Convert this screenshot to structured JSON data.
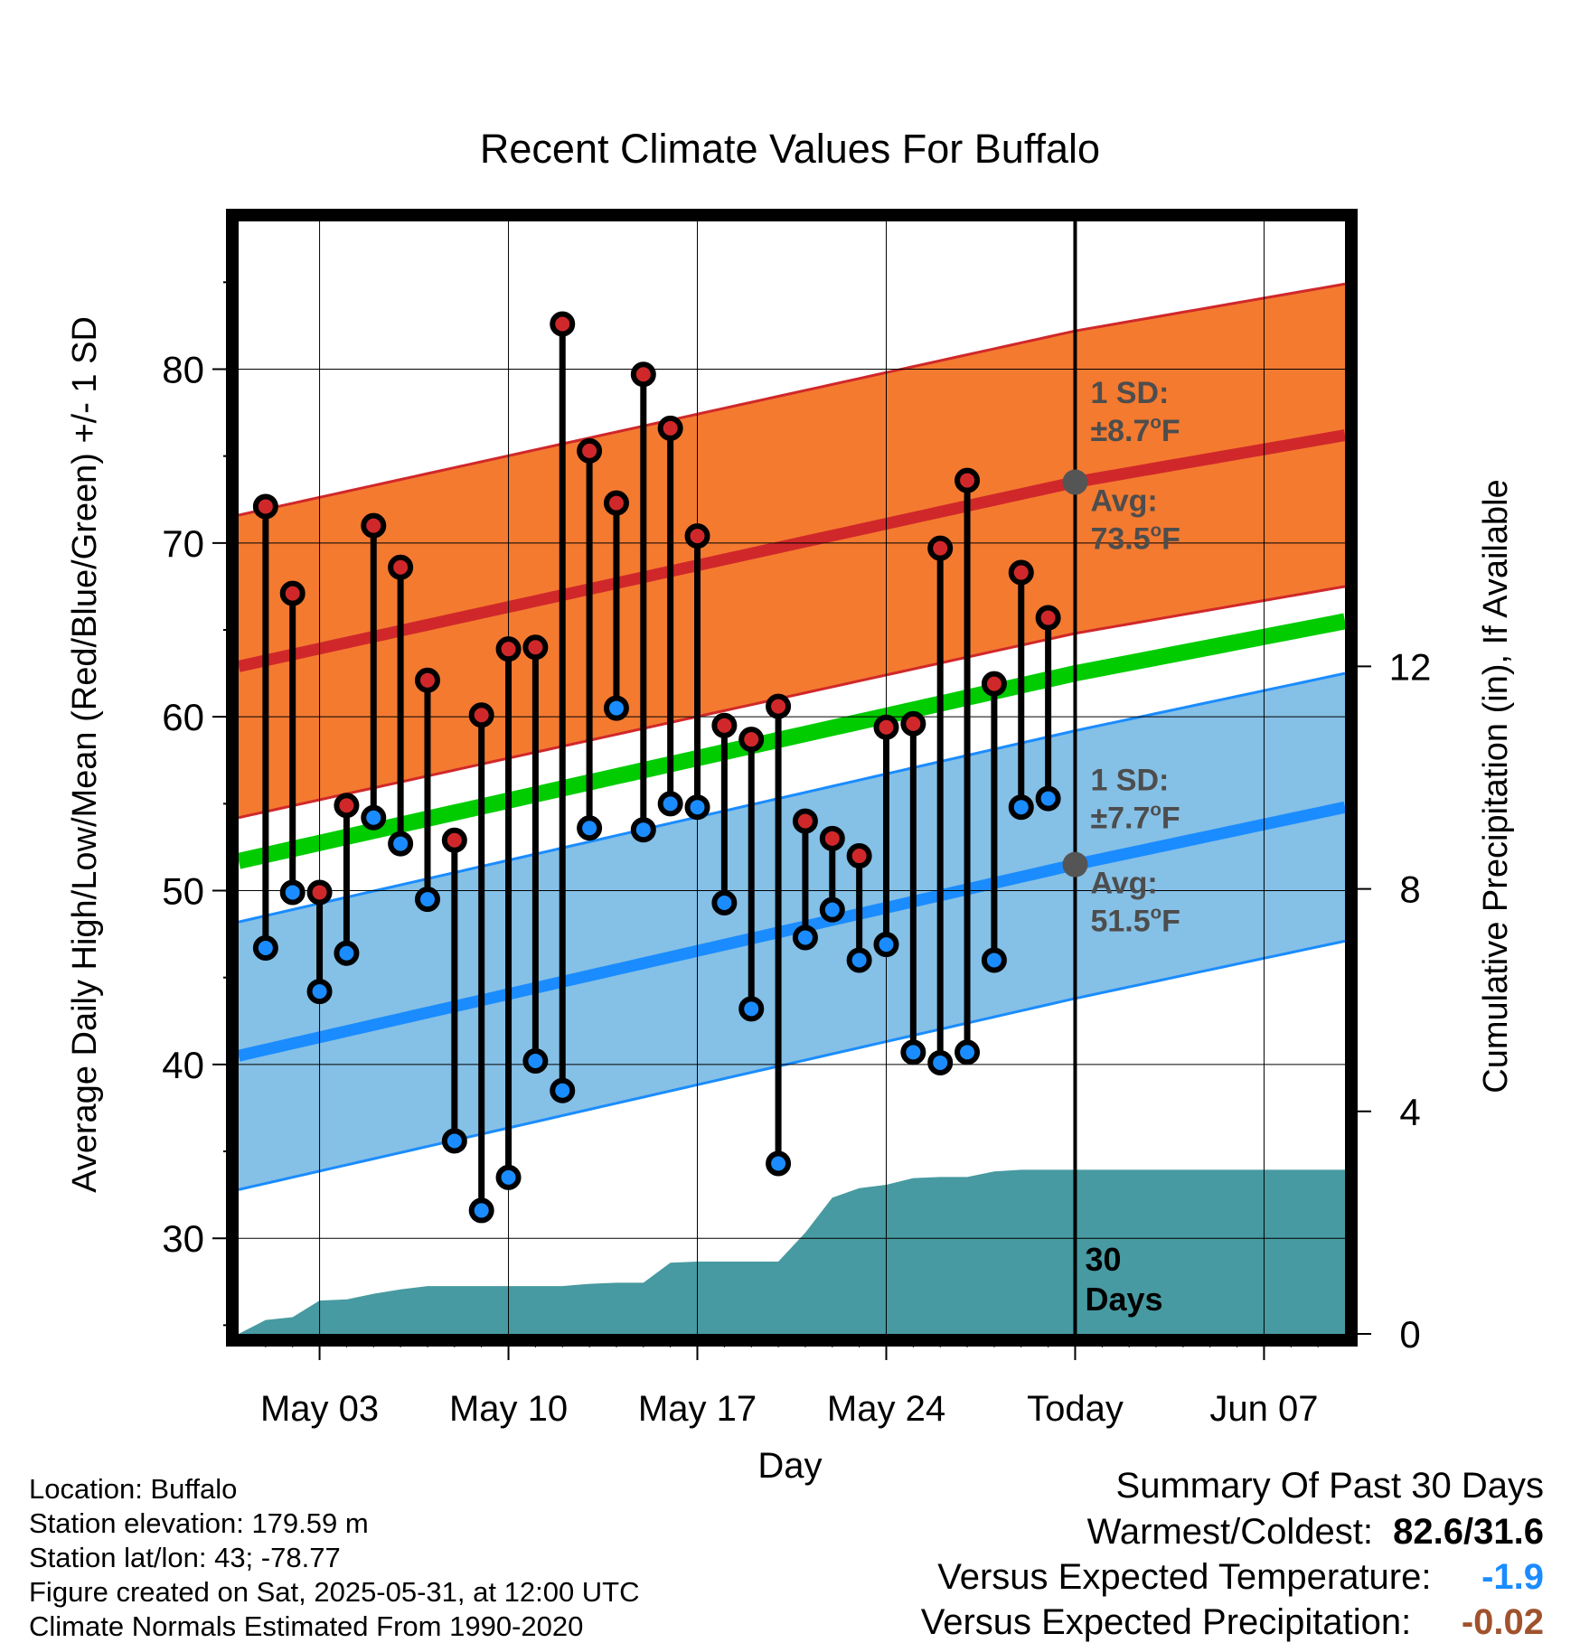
{
  "chart_data": {
    "type": "line",
    "title": "Recent Climate Values For Buffalo",
    "xlabel": "Day",
    "ylabel": "Average Daily High/Low/Mean (Red/Blue/Green) +/- 1 SD",
    "y2label": "Cumulative Precipitation (in), If Available",
    "x_axis": {
      "type": "date",
      "start": "2025-04-30",
      "end": "2025-06-10",
      "today": "2025-05-31",
      "tick_dates": [
        "2025-05-03",
        "2025-05-10",
        "2025-05-17",
        "2025-05-24",
        "2025-05-31",
        "2025-06-07"
      ],
      "tick_labels": [
        "May 03",
        "May 10",
        "May 17",
        "May 24",
        "Today",
        "Jun 07"
      ]
    },
    "ylim": [
      24.5,
      88.5
    ],
    "yticks": [
      30,
      40,
      50,
      60,
      70,
      80
    ],
    "y2lim": [
      0,
      20
    ],
    "y2ticks": [
      0,
      4,
      8,
      12
    ],
    "grid": true,
    "observed": {
      "dates": [
        "2025-05-01",
        "2025-05-02",
        "2025-05-03",
        "2025-05-04",
        "2025-05-05",
        "2025-05-06",
        "2025-05-07",
        "2025-05-08",
        "2025-05-09",
        "2025-05-10",
        "2025-05-11",
        "2025-05-12",
        "2025-05-13",
        "2025-05-14",
        "2025-05-15",
        "2025-05-16",
        "2025-05-17",
        "2025-05-18",
        "2025-05-19",
        "2025-05-20",
        "2025-05-21",
        "2025-05-22",
        "2025-05-23",
        "2025-05-24",
        "2025-05-25",
        "2025-05-26",
        "2025-05-27",
        "2025-05-28",
        "2025-05-29",
        "2025-05-30"
      ],
      "high": [
        72.1,
        67.1,
        49.9,
        54.9,
        71.0,
        68.6,
        62.1,
        52.9,
        60.1,
        63.9,
        64.0,
        82.6,
        75.3,
        72.3,
        79.7,
        76.6,
        70.4,
        59.5,
        58.7,
        60.6,
        54.0,
        53.0,
        52.0,
        59.4,
        59.6,
        69.7,
        73.6,
        61.9,
        68.3,
        65.7
      ],
      "low": [
        46.7,
        49.9,
        44.2,
        46.4,
        54.2,
        52.7,
        49.5,
        35.6,
        31.6,
        33.5,
        40.2,
        38.5,
        53.6,
        60.5,
        53.5,
        55.0,
        54.8,
        49.3,
        43.2,
        34.3,
        47.3,
        48.9,
        46.0,
        46.9,
        40.7,
        40.1,
        40.7,
        46.0,
        54.8,
        55.3
      ]
    },
    "precip_cumulative": {
      "dates": [
        "2025-04-30",
        "2025-05-01",
        "2025-05-02",
        "2025-05-03",
        "2025-05-04",
        "2025-05-05",
        "2025-05-06",
        "2025-05-07",
        "2025-05-08",
        "2025-05-09",
        "2025-05-10",
        "2025-05-11",
        "2025-05-12",
        "2025-05-13",
        "2025-05-14",
        "2025-05-15",
        "2025-05-16",
        "2025-05-17",
        "2025-05-18",
        "2025-05-19",
        "2025-05-20",
        "2025-05-21",
        "2025-05-22",
        "2025-05-23",
        "2025-05-24",
        "2025-05-25",
        "2025-05-26",
        "2025-05-27",
        "2025-05-28",
        "2025-05-29",
        "2025-05-30",
        "2025-05-31",
        "2025-06-10"
      ],
      "values": [
        0.0,
        0.25,
        0.3,
        0.6,
        0.62,
        0.72,
        0.8,
        0.86,
        0.86,
        0.86,
        0.86,
        0.86,
        0.86,
        0.9,
        0.92,
        0.92,
        1.28,
        1.3,
        1.3,
        1.3,
        1.3,
        1.82,
        2.45,
        2.62,
        2.68,
        2.8,
        2.82,
        2.82,
        2.92,
        2.95,
        2.95,
        2.95,
        2.95
      ]
    },
    "normal_high": {
      "dates": [
        "2025-04-30",
        "2025-05-31",
        "2025-06-10"
      ],
      "mean": [
        62.9,
        73.5,
        76.2
      ],
      "sd": 8.7,
      "band_color": "#f47a30",
      "line_color": "#d0282a"
    },
    "normal_low": {
      "dates": [
        "2025-04-30",
        "2025-05-31",
        "2025-06-10"
      ],
      "mean": [
        40.5,
        51.5,
        54.8
      ],
      "sd": 7.7,
      "band_color": "#85c0e6",
      "line_color": "#1a8cff"
    },
    "normal_mean": {
      "dates": [
        "2025-04-30",
        "2025-05-31",
        "2025-06-10"
      ],
      "values": [
        51.7,
        62.5,
        65.5
      ],
      "line_color": "#00cc00"
    },
    "precip_color": "#479aa1",
    "high_marker_color": "#d0282a",
    "low_marker_color": "#1a8cff",
    "annotations": {
      "high_sd_label": "1 SD:",
      "high_sd_value": "±8.7",
      "high_avg_label": "Avg:",
      "high_avg_value": "73.5",
      "low_sd_label": "1 SD:",
      "low_sd_value": "±7.7",
      "low_avg_label": "Avg:",
      "low_avg_value": "51.5",
      "degree_unit": "o",
      "unit_letter": "F",
      "days_number": "30",
      "days_word": "Days"
    }
  },
  "metadata_text": {
    "location": "Location: Buffalo",
    "elevation": "Station elevation: 179.59 m",
    "latlon": "Station lat/lon: 43; -78.77",
    "created": "Figure created on Sat, 2025-05-31, at 12:00 UTC",
    "normals": "Climate Normals Estimated From 1990-2020"
  },
  "summary": {
    "heading": "Summary Of Past 30 Days",
    "warm_cold_label": "Warmest/Coldest:",
    "warm_cold_value": "82.6/31.6",
    "temp_label": "Versus Expected Temperature:",
    "temp_value": "-1.9",
    "temp_value_color": "#1a8cff",
    "precip_label": "Versus Expected Precipitation:",
    "precip_value": "-0.02",
    "precip_value_color": "#a0522d"
  }
}
